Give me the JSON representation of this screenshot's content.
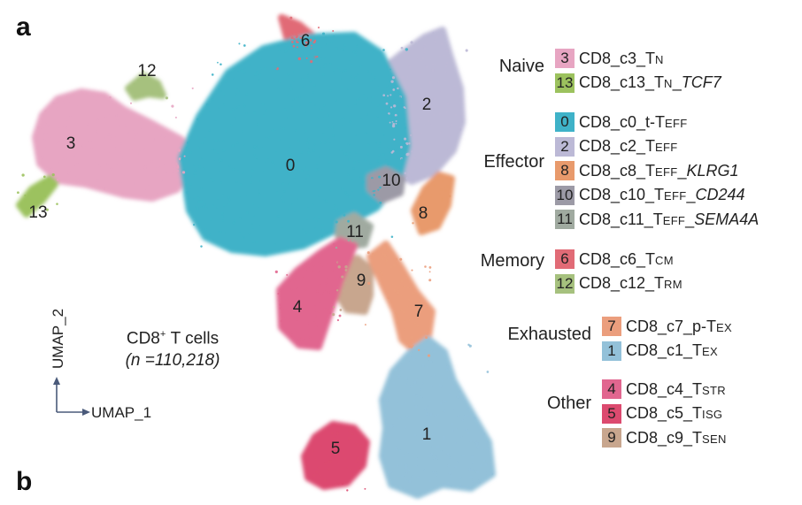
{
  "panel_labels": {
    "a": "a",
    "b": "b"
  },
  "axes": {
    "x": "UMAP_1",
    "y": "UMAP_2"
  },
  "cells": {
    "title_prefix": "CD8",
    "title_sup": "+",
    "title_suffix": "T cells",
    "count": "(n =110,218)"
  },
  "chart_data": {
    "type": "scatter",
    "xlabel": "UMAP_1",
    "ylabel": "UMAP_2",
    "clusters": [
      {
        "id": "0",
        "name": "CD8_c0_t-TEFF",
        "color": "#3fb2c8"
      },
      {
        "id": "1",
        "name": "CD8_c1_TEX",
        "color": "#93c1d9"
      },
      {
        "id": "2",
        "name": "CD8_c2_TEFF",
        "color": "#bcb9d6"
      },
      {
        "id": "3",
        "name": "CD8_c3_TN",
        "color": "#e7a5c2"
      },
      {
        "id": "4",
        "name": "CD8_c4_TSTR",
        "color": "#e1668f"
      },
      {
        "id": "5",
        "name": "CD8_c5_TISG",
        "color": "#dc4a6f"
      },
      {
        "id": "6",
        "name": "CD8_c6_TCM",
        "color": "#e16b76"
      },
      {
        "id": "7",
        "name": "CD8_c7_p-TEX",
        "color": "#eb9e7d"
      },
      {
        "id": "8",
        "name": "CD8_c8_TEFF_KLRG1",
        "color": "#e89a6c"
      },
      {
        "id": "9",
        "name": "CD8_c9_TSEN",
        "color": "#c8a68e"
      },
      {
        "id": "10",
        "name": "CD8_c10_TEFF_CD244",
        "color": "#9c9aa6"
      },
      {
        "id": "11",
        "name": "CD8_c11_TEFF_SEMA4A",
        "color": "#a0aaa0"
      },
      {
        "id": "12",
        "name": "CD8_c12_TRM",
        "color": "#a6c17e"
      },
      {
        "id": "13",
        "name": "CD8_c13_TN_TCF7",
        "color": "#9cc25e"
      }
    ]
  },
  "legend": {
    "groups": [
      {
        "name": "Naive",
        "items": [
          {
            "num": "3",
            "main": "CD8_c3_T",
            "sub": "N",
            "tail": "",
            "color": "#e7a5c2"
          },
          {
            "num": "13",
            "main": "CD8_c13_T",
            "sub": "N",
            "tail": "_TCF7",
            "color": "#9cc25e"
          }
        ]
      },
      {
        "name": "Effector",
        "items": [
          {
            "num": "0",
            "main": "CD8_c0_t-T",
            "sub": "EFF",
            "tail": "",
            "color": "#3fb2c8"
          },
          {
            "num": "2",
            "main": "CD8_c2_T",
            "sub": "EFF",
            "tail": "",
            "color": "#bcb9d6"
          },
          {
            "num": "8",
            "main": "CD8_c8_T",
            "sub": "EFF",
            "tail": "_KLRG1",
            "color": "#e89a6c"
          },
          {
            "num": "10",
            "main": "CD8_c10_T",
            "sub": "EFF",
            "tail": "_CD244",
            "color": "#9c9aa6"
          },
          {
            "num": "11",
            "main": "CD8_c11_T",
            "sub": "EFF",
            "tail": "_SEMA4A",
            "color": "#a0aaa0"
          }
        ]
      },
      {
        "name": "Memory",
        "items": [
          {
            "num": "6",
            "main": "CD8_c6_T",
            "sub": "CM",
            "tail": "",
            "color": "#e16b76"
          },
          {
            "num": "12",
            "main": "CD8_c12_T",
            "sub": "RM",
            "tail": "",
            "color": "#a6c17e"
          }
        ]
      },
      {
        "name": "Exhausted",
        "items": [
          {
            "num": "7",
            "main": "CD8_c7_p-T",
            "sub": "EX",
            "tail": "",
            "color": "#eb9e7d"
          },
          {
            "num": "1",
            "main": "CD8_c1_T",
            "sub": "EX",
            "tail": "",
            "color": "#93c1d9"
          }
        ]
      },
      {
        "name": "Other",
        "items": [
          {
            "num": "4",
            "main": "CD8_c4_T",
            "sub": "STR",
            "tail": "",
            "color": "#e1668f"
          },
          {
            "num": "5",
            "main": "CD8_c5_T",
            "sub": "ISG",
            "tail": "",
            "color": "#dc4a6f"
          },
          {
            "num": "9",
            "main": "CD8_c9_T",
            "sub": "SEN",
            "tail": "",
            "color": "#c8a68e"
          }
        ]
      }
    ]
  }
}
